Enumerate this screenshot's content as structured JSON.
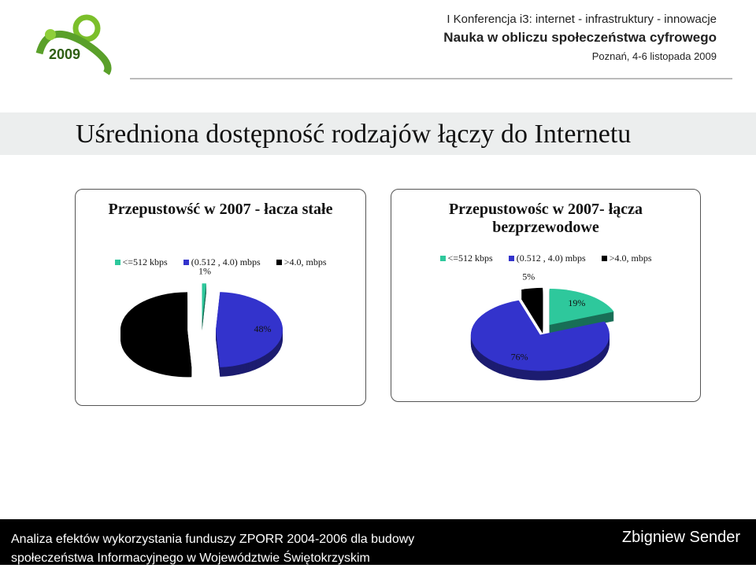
{
  "header": {
    "logo": "2009",
    "line1": "I Konferencja i3: internet - infrastruktury - innowacje",
    "line2": "Nauka w obliczu społeczeństwa cyfrowego",
    "line3": "Poznań, 4-6 listopada 2009"
  },
  "slide_title": "Uśredniona dostępność rodzajów łączy do Internetu",
  "chart_data": [
    {
      "type": "pie",
      "title": "Przepustowść  w 2007  - łacza stałe",
      "categories": [
        "<=512 kbps",
        "(0.512 , 4.0) mbps",
        ">4.0, mbps"
      ],
      "values": [
        1,
        48,
        51
      ],
      "value_labels": [
        "1%",
        "48%",
        null
      ],
      "colors": [
        "#2ec89c",
        "#3333cc",
        "#000000"
      ],
      "legend": "top"
    },
    {
      "type": "pie",
      "title": "Przepustowośc w 2007- łącza bezprzewodowe",
      "categories": [
        "<=512 kbps",
        "(0.512 , 4.0) mbps",
        ">4.0, mbps"
      ],
      "values": [
        19,
        76,
        5
      ],
      "value_labels": [
        "19%",
        "76%",
        "5%"
      ],
      "colors": [
        "#2ec89c",
        "#3333cc",
        "#000000"
      ],
      "legend": "top"
    }
  ],
  "footer": {
    "left1": "Analiza efektów wykorzystania funduszy ZPORR 2004-2006 dla budowy",
    "left2": "społeczeństwa Informacyjnego w Województwie Świętokrzyskim",
    "right": "Zbigniew Sender"
  }
}
